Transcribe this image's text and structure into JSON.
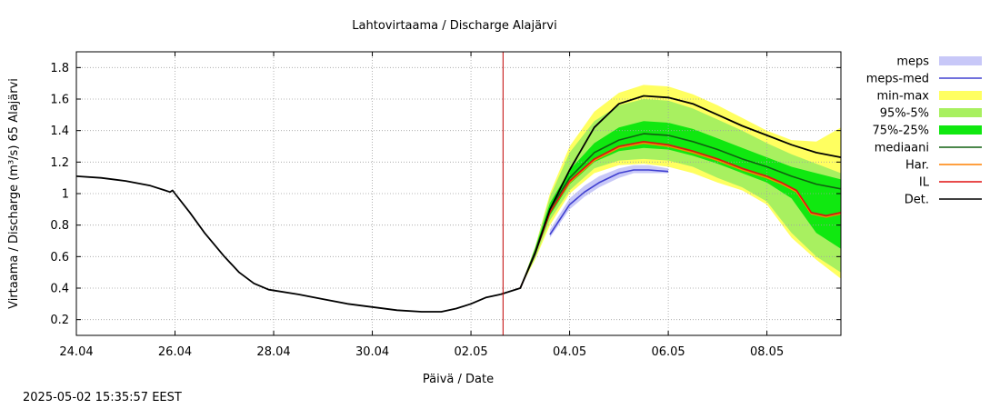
{
  "chart_data": {
    "type": "line",
    "title": "Lahtovirtaama / Discharge  Alajärvi",
    "xlabel": "Päivä / Date",
    "ylabel": "Virtaama / Discharge (m³/s)   65 Alajärvi",
    "x_start": "2025-04-24 00:00",
    "x_end": "2025-05-09 12:00",
    "xlim_days": [
      0,
      15.5
    ],
    "ylim": [
      0.1,
      1.9
    ],
    "yticks": [
      0.2,
      0.4,
      0.6,
      0.8,
      1,
      1.2,
      1.4,
      1.6,
      1.8
    ],
    "xticks": [
      {
        "day": 0,
        "label": "24.04"
      },
      {
        "day": 2,
        "label": "26.04"
      },
      {
        "day": 4,
        "label": "28.04"
      },
      {
        "day": 6,
        "label": "30.04"
      },
      {
        "day": 8,
        "label": "02.05"
      },
      {
        "day": 10,
        "label": "04.05"
      },
      {
        "day": 12,
        "label": "06.05"
      },
      {
        "day": 14,
        "label": "08.05"
      }
    ],
    "grid": true,
    "current_time_day": 8.65,
    "legend": {
      "placement": "right",
      "entries": [
        {
          "key": "meps",
          "label": "meps",
          "kind": "band",
          "color": "#c8c8f8"
        },
        {
          "key": "meps_med",
          "label": "meps-med",
          "kind": "line",
          "color": "#4040d0"
        },
        {
          "key": "minmax",
          "label": "min-max",
          "kind": "band",
          "color": "#ffff60"
        },
        {
          "key": "p95_5",
          "label": "95%-5%",
          "kind": "band",
          "color": "#a8f060"
        },
        {
          "key": "p75_25",
          "label": "75%-25%",
          "kind": "band",
          "color": "#10e810"
        },
        {
          "key": "median",
          "label": "mediaani",
          "kind": "line",
          "color": "#106010"
        },
        {
          "key": "har",
          "label": "Har.",
          "kind": "line",
          "color": "#ff8000"
        },
        {
          "key": "il",
          "label": "IL",
          "kind": "line",
          "color": "#e01010"
        },
        {
          "key": "det",
          "label": "Det.",
          "kind": "line",
          "color": "#000000"
        }
      ]
    },
    "series": {
      "observed": {
        "x": [
          0,
          0.5,
          1,
          1.5,
          1.8,
          1.9,
          1.95,
          2.0,
          2.3,
          2.6,
          3.0,
          3.3,
          3.6,
          3.9,
          4.5,
          5.0,
          5.5,
          6.0,
          6.5,
          7.0,
          7.4,
          7.7,
          8.0,
          8.3,
          8.6
        ],
        "y": [
          1.11,
          1.1,
          1.08,
          1.05,
          1.02,
          1.01,
          1.02,
          1.0,
          0.88,
          0.75,
          0.6,
          0.5,
          0.43,
          0.39,
          0.36,
          0.33,
          0.3,
          0.28,
          0.26,
          0.25,
          0.25,
          0.27,
          0.3,
          0.34,
          0.36
        ]
      },
      "det": {
        "x": [
          8.6,
          9.0,
          9.3,
          9.6,
          10.0,
          10.5,
          11.0,
          11.5,
          12.0,
          12.5,
          13.0,
          13.5,
          14.0,
          14.5,
          15.0,
          15.5
        ],
        "y": [
          0.36,
          0.4,
          0.62,
          0.9,
          1.15,
          1.42,
          1.57,
          1.62,
          1.61,
          1.57,
          1.5,
          1.43,
          1.37,
          1.31,
          1.26,
          1.23
        ]
      },
      "il": {
        "x": [
          9.0,
          9.3,
          9.6,
          10.0,
          10.5,
          11.0,
          11.5,
          12.0,
          12.5,
          13.0,
          13.5,
          14.0,
          14.3,
          14.6,
          14.9,
          15.2,
          15.5
        ],
        "y": [
          0.4,
          0.62,
          0.88,
          1.08,
          1.22,
          1.3,
          1.33,
          1.31,
          1.27,
          1.22,
          1.16,
          1.11,
          1.07,
          1.02,
          0.88,
          0.86,
          0.88
        ]
      },
      "har": {
        "x": [
          9.0,
          9.3,
          9.6,
          10.0,
          10.5,
          11.0,
          11.5,
          12.0,
          12.5,
          13.0,
          13.5,
          14.0,
          14.3,
          14.6,
          14.9,
          15.2,
          15.5
        ],
        "y": [
          0.4,
          0.62,
          0.88,
          1.07,
          1.21,
          1.29,
          1.32,
          1.3,
          1.26,
          1.21,
          1.15,
          1.1,
          1.06,
          1.01,
          0.87,
          0.85,
          0.87
        ]
      },
      "median": {
        "x": [
          9.0,
          9.3,
          9.6,
          10.0,
          10.5,
          11.0,
          11.5,
          12.0,
          12.5,
          13.0,
          13.5,
          14.0,
          14.5,
          15.0,
          15.5
        ],
        "y": [
          0.4,
          0.63,
          0.9,
          1.1,
          1.26,
          1.34,
          1.38,
          1.37,
          1.33,
          1.28,
          1.22,
          1.17,
          1.11,
          1.06,
          1.03
        ]
      },
      "meps_med": {
        "x": [
          9.6,
          10.0,
          10.3,
          10.6,
          11.0,
          11.3,
          11.6,
          12.0
        ],
        "y": [
          0.74,
          0.93,
          1.01,
          1.07,
          1.13,
          1.15,
          1.15,
          1.14
        ]
      },
      "meps_band": {
        "x": [
          9.6,
          10.0,
          10.3,
          10.6,
          11.0,
          11.3,
          11.6,
          12.0
        ],
        "low": [
          0.72,
          0.9,
          0.98,
          1.04,
          1.1,
          1.13,
          1.13,
          1.13
        ],
        "high": [
          0.77,
          0.97,
          1.05,
          1.11,
          1.16,
          1.18,
          1.18,
          1.16
        ]
      },
      "minmax_band": {
        "x": [
          9.0,
          9.3,
          9.6,
          10.0,
          10.5,
          11.0,
          11.5,
          12.0,
          12.5,
          13.0,
          13.5,
          14.0,
          14.5,
          15.0,
          15.5
        ],
        "low": [
          0.4,
          0.58,
          0.8,
          1.0,
          1.13,
          1.18,
          1.19,
          1.17,
          1.13,
          1.07,
          1.02,
          0.93,
          0.72,
          0.58,
          0.46
        ],
        "high": [
          0.4,
          0.66,
          1.0,
          1.3,
          1.52,
          1.64,
          1.69,
          1.68,
          1.63,
          1.56,
          1.48,
          1.4,
          1.34,
          1.33,
          1.42
        ]
      },
      "p95_band": {
        "x": [
          9.0,
          9.3,
          9.6,
          10.0,
          10.5,
          11.0,
          11.5,
          12.0,
          12.5,
          13.0,
          13.5,
          14.0,
          14.5,
          15.0,
          15.5
        ],
        "low": [
          0.4,
          0.59,
          0.83,
          1.02,
          1.16,
          1.21,
          1.22,
          1.21,
          1.17,
          1.1,
          1.04,
          0.95,
          0.75,
          0.6,
          0.5
        ],
        "high": [
          0.4,
          0.66,
          0.98,
          1.26,
          1.46,
          1.56,
          1.6,
          1.59,
          1.54,
          1.47,
          1.4,
          1.32,
          1.25,
          1.19,
          1.13
        ]
      },
      "p75_band": {
        "x": [
          9.0,
          9.3,
          9.6,
          10.0,
          10.5,
          11.0,
          11.5,
          12.0,
          12.5,
          13.0,
          13.5,
          14.0,
          14.5,
          15.0,
          15.5
        ],
        "low": [
          0.4,
          0.61,
          0.86,
          1.06,
          1.2,
          1.27,
          1.29,
          1.28,
          1.24,
          1.19,
          1.13,
          1.07,
          0.97,
          0.75,
          0.65
        ],
        "high": [
          0.4,
          0.65,
          0.94,
          1.15,
          1.32,
          1.42,
          1.46,
          1.45,
          1.41,
          1.35,
          1.29,
          1.23,
          1.17,
          1.13,
          1.09
        ]
      }
    }
  },
  "timestamp": "2025-05-02 15:35:57 EEST"
}
